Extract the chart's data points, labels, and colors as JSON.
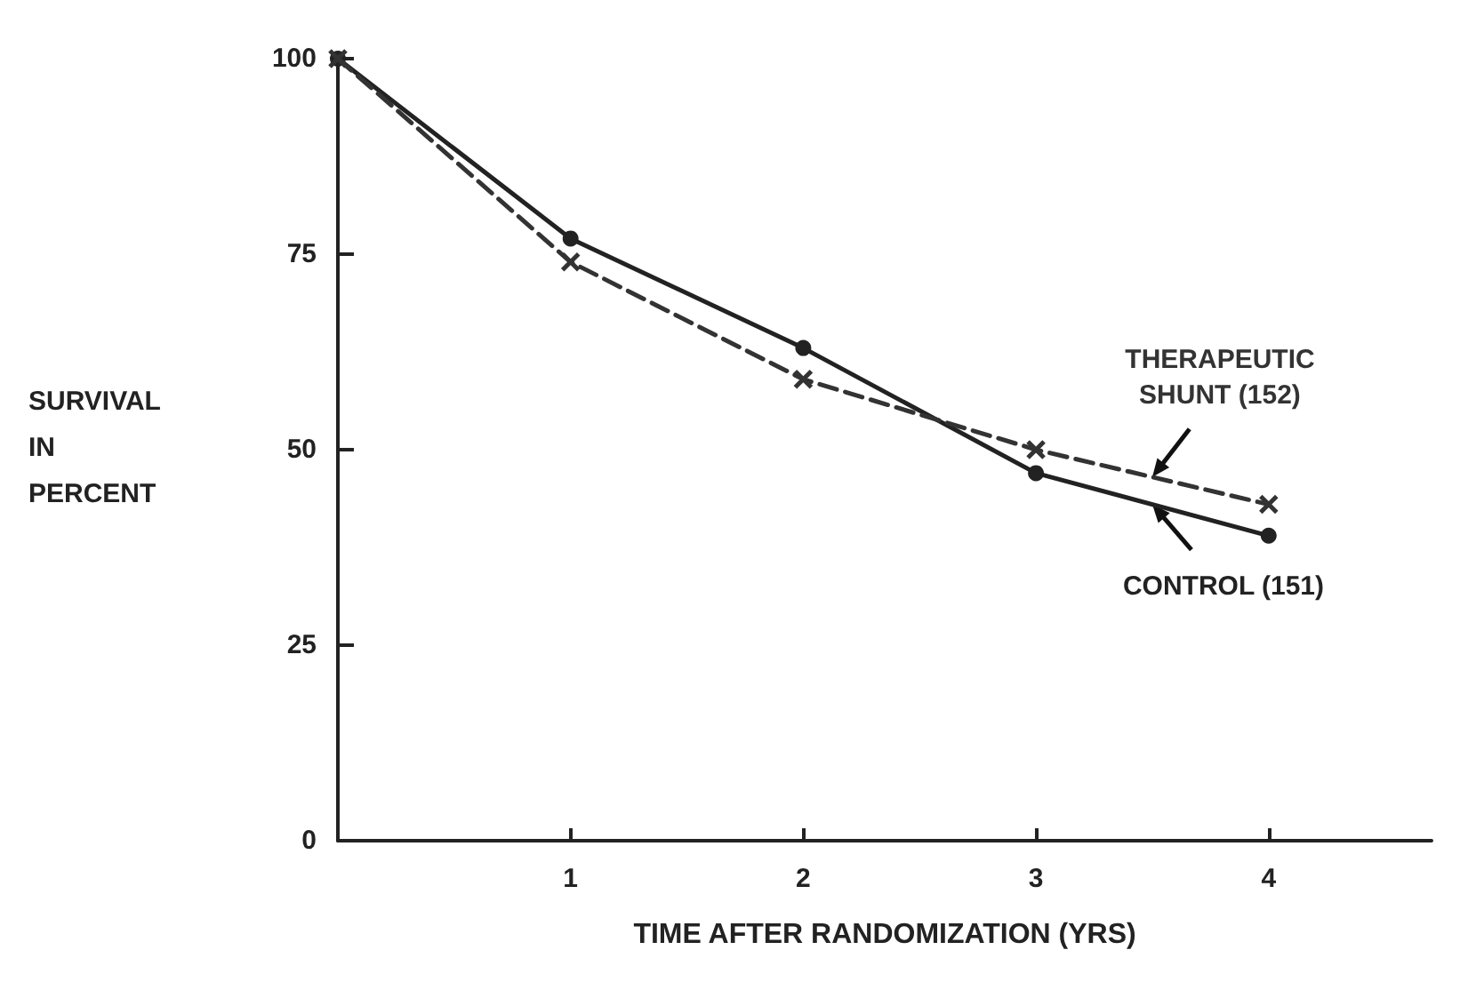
{
  "chart_data": {
    "type": "line",
    "xlabel": "TIME AFTER RANDOMIZATION (YRS)",
    "ylabel": "SURVIVAL\nIN\nPERCENT",
    "x": [
      0,
      1,
      2,
      3,
      4
    ],
    "series": [
      {
        "name": "CONTROL (151)",
        "color": "#222222",
        "values": [
          100,
          77,
          63,
          47,
          39
        ],
        "marker": "circle",
        "line_style": "solid"
      },
      {
        "name": "THERAPEUTIC\nSHUNT (152)",
        "color": "#333333",
        "values": [
          100,
          74,
          59,
          50,
          43
        ],
        "marker": "cross",
        "line_style": "dashed"
      }
    ],
    "xlim": [
      0,
      4.7
    ],
    "xticks": [
      1,
      2,
      3,
      4
    ],
    "ylim": [
      0,
      100
    ],
    "yticks": [
      0,
      25,
      50,
      75,
      100
    ],
    "grid": false,
    "legend": false
  }
}
